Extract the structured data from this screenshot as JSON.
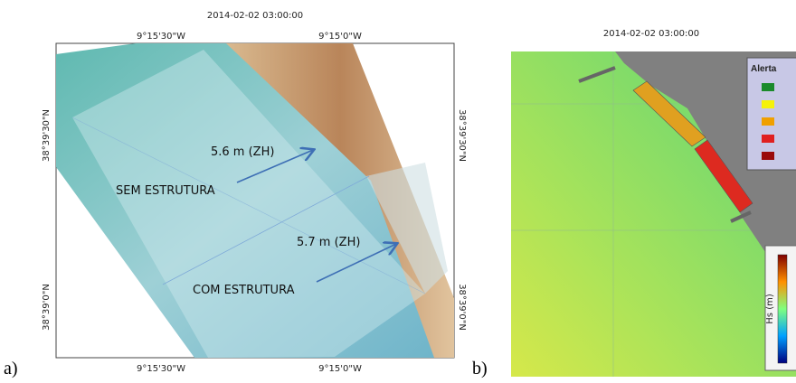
{
  "panels": [
    {
      "label": "a)",
      "title": "2014-02-02 03:00:00",
      "top_ticks": [
        "9°15'30\"W",
        "9°15'0\"W"
      ],
      "bottom_ticks": [
        "9°15'30\"W",
        "9°15'0\"W"
      ],
      "left_ticks": [
        "38°39'30\"N",
        "38°39'0\"N"
      ],
      "right_ticks": [
        "38°39'30\"N",
        "38°39'0\"N"
      ],
      "annotations": [
        "5.6 m (ZH)",
        "SEM ESTRUTURA",
        "5.7 m (ZH)",
        "COM ESTRUTURA"
      ]
    },
    {
      "label": "b)",
      "title": "2014-02-02 03:00:00",
      "legend_title": "Alerta",
      "colorbar_label": "Hs (m)"
    }
  ]
}
